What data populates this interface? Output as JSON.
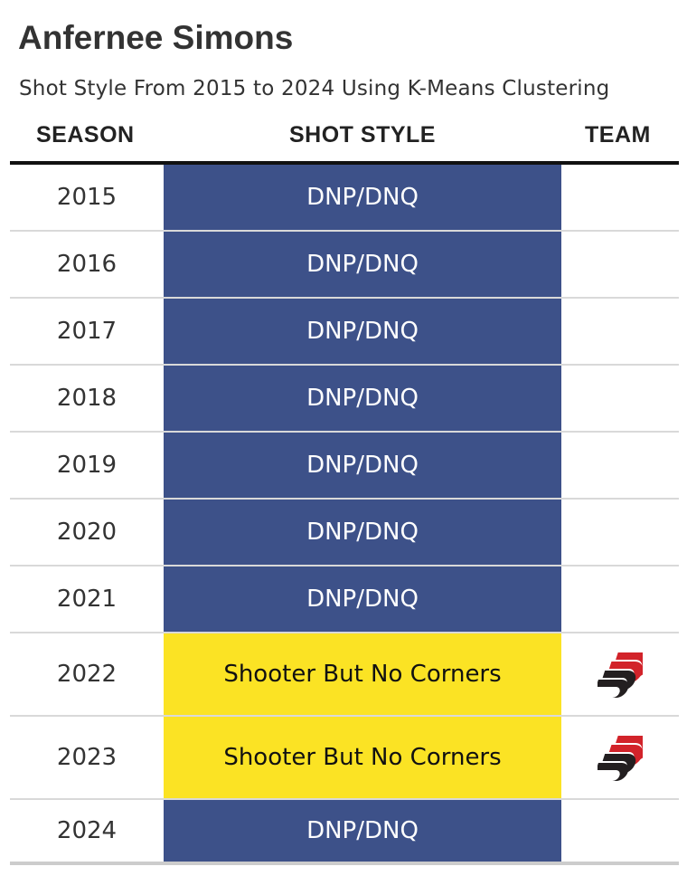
{
  "title": "Anfernee Simons",
  "subtitle": "Shot Style From 2015 to 2024 Using K-Means Clustering",
  "columns": {
    "season": "SEASON",
    "shot_style": "SHOT STYLE",
    "team": "TEAM"
  },
  "colors": {
    "dnp": "#3d5189",
    "dnp_text": "#ffffff",
    "shooter": "#fbe324",
    "shooter_text": "#111111",
    "team_logo_red": "#d2232a",
    "team_logo_dark": "#231f20"
  },
  "chart_data": {
    "type": "table",
    "title": "Anfernee Simons",
    "subtitle": "Shot Style From 2015 to 2024 Using K-Means Clustering",
    "columns": [
      "SEASON",
      "SHOT STYLE",
      "TEAM"
    ],
    "rows": [
      {
        "season": "2015",
        "style": "DNP/DNQ",
        "team_logo": null
      },
      {
        "season": "2016",
        "style": "DNP/DNQ",
        "team_logo": null
      },
      {
        "season": "2017",
        "style": "DNP/DNQ",
        "team_logo": null
      },
      {
        "season": "2018",
        "style": "DNP/DNQ",
        "team_logo": null
      },
      {
        "season": "2019",
        "style": "DNP/DNQ",
        "team_logo": null
      },
      {
        "season": "2020",
        "style": "DNP/DNQ",
        "team_logo": null
      },
      {
        "season": "2021",
        "style": "DNP/DNQ",
        "team_logo": null
      },
      {
        "season": "2022",
        "style": "Shooter But No Corners",
        "team_logo": "trail-blazers-logo-icon"
      },
      {
        "season": "2023",
        "style": "Shooter But No Corners",
        "team_logo": "trail-blazers-logo-icon"
      },
      {
        "season": "2024",
        "style": "DNP/DNQ",
        "team_logo": null
      }
    ]
  }
}
